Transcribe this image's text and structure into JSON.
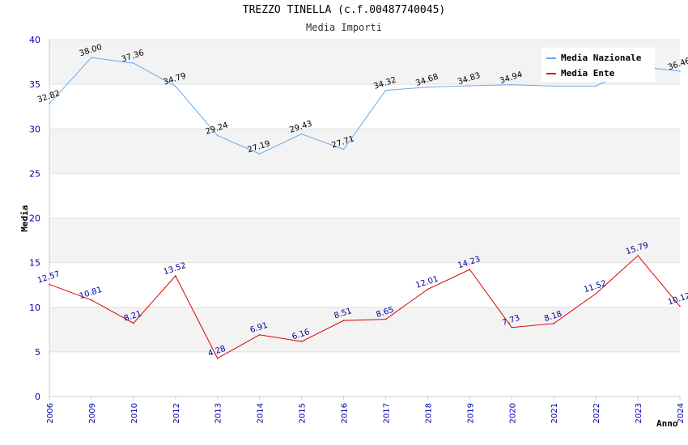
{
  "chart_data": {
    "type": "line",
    "title": "TREZZO TINELLA (c.f.00487740045)",
    "subtitle": "Media Importi",
    "xlabel": "Anno",
    "ylabel": "Media",
    "categories": [
      "2006",
      "2009",
      "2010",
      "2012",
      "2013",
      "2014",
      "2015",
      "2016",
      "2017",
      "2018",
      "2019",
      "2020",
      "2021",
      "2022",
      "2023",
      "2024"
    ],
    "ylim": [
      0,
      40
    ],
    "yticks": [
      0,
      5,
      10,
      15,
      20,
      25,
      30,
      35,
      40
    ],
    "grid": "horizontal bands",
    "legend_position": "top-right",
    "series": [
      {
        "name": "Media Nazionale",
        "color": "#66aaee",
        "label_color": "#000000",
        "values": [
          32.82,
          38.0,
          37.36,
          34.79,
          29.24,
          27.19,
          29.43,
          27.71,
          34.32,
          34.68,
          34.83,
          34.94,
          34.8,
          34.8,
          37.0,
          36.46
        ],
        "labels": [
          "32.82",
          "38.00",
          "37.36",
          "34.79",
          "29.24",
          "27.19",
          "29.43",
          "27.71",
          "34.32",
          "34.68",
          "34.83",
          "34.94",
          "",
          "",
          "",
          "36.46"
        ]
      },
      {
        "name": "Media Ente",
        "color": "#dd0000",
        "label_color": "#000099",
        "values": [
          12.57,
          10.81,
          8.21,
          13.52,
          4.28,
          6.91,
          6.16,
          8.51,
          8.65,
          12.01,
          14.23,
          7.73,
          8.18,
          11.52,
          15.79,
          10.12
        ],
        "labels": [
          "12.57",
          "10.81",
          "8.21",
          "13.52",
          "4.28",
          "6.91",
          "6.16",
          "8.51",
          "8.65",
          "12.01",
          "14.23",
          "7.73",
          "8.18",
          "11.52",
          "15.79",
          "10.12"
        ]
      }
    ]
  }
}
